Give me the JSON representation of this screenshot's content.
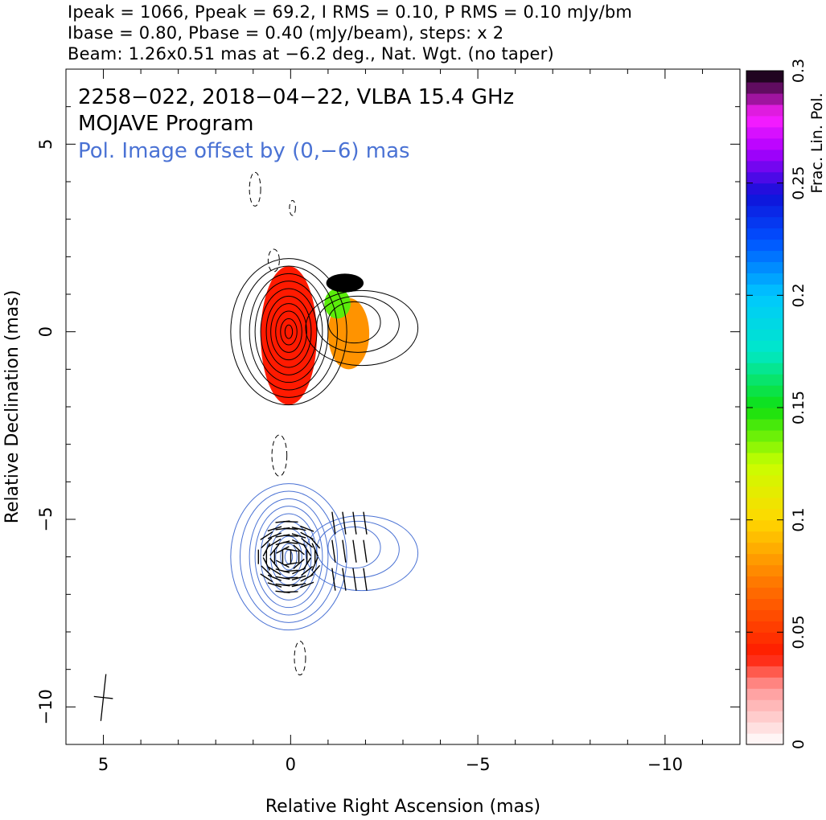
{
  "header": {
    "line1": "Ipeak = 1066, Ppeak = 69.2, I RMS = 0.10, P RMS = 0.10 mJy/bm",
    "line2": "Ibase = 0.80, Pbase = 0.40 (mJy/beam), steps: x 2",
    "line3": "Beam: 1.26x0.51 mas at −6.2 deg., Nat. Wgt. (no taper)"
  },
  "annotations": {
    "source_line": "2258−022, 2018−04−22, VLBA 15.4 GHz",
    "program_line": "MOJAVE Program",
    "offset_line": "Pol. Image offset by (0,−6) mas",
    "offset_color": "#4a72d4"
  },
  "chart_data": {
    "type": "contour",
    "xlabel": "Relative Right Ascension (mas)",
    "ylabel": "Relative Declination (mas)",
    "xlim": [
      6,
      -12
    ],
    "ylim": [
      -11,
      7
    ],
    "x_ticks": [
      5,
      0,
      -5,
      -10
    ],
    "x_tick_labels": [
      "5",
      "0",
      "−5",
      "−10"
    ],
    "y_ticks": [
      5,
      0,
      -5,
      -10
    ],
    "y_tick_labels": [
      "5",
      "0",
      "−5",
      "−10"
    ],
    "colorbar": {
      "label": "Frac. Lin. Pol.",
      "range": [
        0,
        0.3
      ],
      "ticks": [
        0,
        0.05,
        0.1,
        0.15,
        0.2,
        0.25,
        0.3
      ],
      "tick_labels": [
        "0",
        "0.05",
        "0.1",
        "0.15",
        "0.2",
        "0.25",
        "0.3"
      ]
    },
    "beam": {
      "major_mas": 1.26,
      "minor_mas": 0.51,
      "pa_deg": -6.2,
      "position": "bottom-left"
    },
    "total_intensity_contours": {
      "center": [
        0.05,
        0.0
      ],
      "levels": [
        {
          "rx": 1.55,
          "ry": 1.95
        },
        {
          "rx": 1.3,
          "ry": 1.75
        },
        {
          "rx": 1.05,
          "ry": 1.55
        },
        {
          "rx": 0.9,
          "ry": 1.35
        },
        {
          "rx": 0.75,
          "ry": 1.15
        },
        {
          "rx": 0.6,
          "ry": 0.95
        },
        {
          "rx": 0.48,
          "ry": 0.75
        },
        {
          "rx": 0.35,
          "ry": 0.55
        },
        {
          "rx": 0.22,
          "ry": 0.35
        },
        {
          "rx": 0.1,
          "ry": 0.18
        }
      ],
      "jet_contours": [
        {
          "cx": -1.9,
          "cy": 0.1,
          "rx": 1.5,
          "ry": 1.0
        },
        {
          "cx": -1.8,
          "cy": 0.2,
          "rx": 1.1,
          "ry": 0.75
        },
        {
          "cx": -1.7,
          "cy": 0.25,
          "rx": 0.7,
          "ry": 0.55
        }
      ]
    },
    "negative_contours": [
      {
        "cx": 0.95,
        "cy": 3.8,
        "rx": 0.15,
        "ry": 0.45
      },
      {
        "cx": -0.05,
        "cy": 3.3,
        "rx": 0.08,
        "ry": 0.2
      },
      {
        "cx": 0.45,
        "cy": 1.9,
        "rx": 0.15,
        "ry": 0.3
      },
      {
        "cx": 0.3,
        "cy": -3.3,
        "rx": 0.2,
        "ry": 0.55
      },
      {
        "cx": -0.25,
        "cy": -8.7,
        "rx": 0.15,
        "ry": 0.45
      }
    ],
    "fractional_polarization_regions": [
      {
        "cx": 0.05,
        "cy": -0.1,
        "rx": 0.75,
        "ry": 1.85,
        "frac_pol": 0.04
      },
      {
        "cx": -1.55,
        "cy": -0.05,
        "rx": 0.55,
        "ry": 0.95,
        "frac_pol": 0.08
      },
      {
        "cx": -1.25,
        "cy": 0.75,
        "rx": 0.35,
        "ry": 0.4,
        "frac_pol": 0.14
      },
      {
        "cx": -1.45,
        "cy": 1.3,
        "rx": 0.5,
        "ry": 0.25,
        "frac_pol": 0.3
      }
    ]
  }
}
